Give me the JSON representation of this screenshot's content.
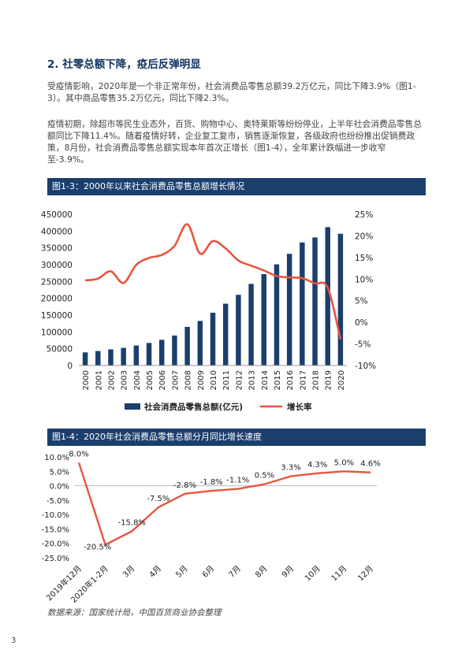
{
  "section_title": "2. 社零总额下降，疫后反弹明显",
  "paragraphs": [
    "受疫情影响，2020年是一个非正常年份，社会消费品零售总额39.2万亿元，同比下降3.9%（图1-3）。其中商品零售35.2万亿元，同比下降2.3%。",
    "疫情初期，除超市等民生业态外，百货、购物中心、奥特莱斯等纷纷停业，上半年社会消费品零售总额同比下降11.4%。随着疫情好转，企业复工复市，销售逐渐恢复，各级政府也纷纷推出促销费政策，8月份，社会消费品零售总额实现本年首次正增长（图1-4），全年累计跌幅进一步收窄至-3.9%。"
  ],
  "figures": [
    {
      "caption": "图1-3：2000年以来社会消费品零售总额增长情况"
    },
    {
      "caption": "图1-4：2020年社会消费品零售总额分月同比增长速度"
    }
  ],
  "chart_data": [
    {
      "type": "bar",
      "categories": [
        "2000",
        "2001",
        "2002",
        "2003",
        "2004",
        "2005",
        "2006",
        "2007",
        "2008",
        "2009",
        "2010",
        "2011",
        "2012",
        "2013",
        "2014",
        "2015",
        "2016",
        "2017",
        "2018",
        "2019",
        "2020"
      ],
      "series": [
        {
          "name": "社会消费品零售总额(亿元)",
          "type": "bar",
          "color": "#1b3f6d",
          "axis": "left",
          "values": [
            39106,
            43055,
            48136,
            52516,
            59501,
            67177,
            76410,
            89210,
            114830,
            132678,
            156998,
            183919,
            210307,
            242843,
            271896,
            300931,
            332316,
            366262,
            380987,
            411649,
            391981
          ]
        },
        {
          "name": "增长率",
          "type": "line",
          "color": "#e8553f",
          "axis": "right",
          "values": [
            9.7,
            10.1,
            11.8,
            9.1,
            13.3,
            14.9,
            15.6,
            17.7,
            22.7,
            15.9,
            18.8,
            17.1,
            14.3,
            13.1,
            12.0,
            10.7,
            10.4,
            10.2,
            9.0,
            8.0,
            -3.9
          ]
        }
      ],
      "y_left_ticks": [
        "450000",
        "400000",
        "350000",
        "300000",
        "250000",
        "200000",
        "150000",
        "100000",
        "50000",
        "0"
      ],
      "y_right_ticks": [
        "25%",
        "20%",
        "15%",
        "10%",
        "5%",
        "0%",
        "-5%",
        "-10%"
      ],
      "ylim_left": [
        0,
        450000
      ],
      "ylim_right": [
        -10,
        25
      ],
      "legend_position": "bottom"
    },
    {
      "type": "line",
      "categories": [
        "2019年12月",
        "2020年1-2月",
        "3月",
        "4月",
        "5月",
        "6月",
        "7月",
        "8月",
        "9月",
        "10月",
        "11月",
        "12月"
      ],
      "series": [
        {
          "name": "",
          "color": "#e8553f",
          "values": [
            8.0,
            -20.5,
            -15.8,
            -7.5,
            -2.8,
            -1.8,
            -1.1,
            0.5,
            3.3,
            4.3,
            5.0,
            4.6
          ],
          "labels": [
            "8.0%",
            "-20.5%",
            "-15.8%",
            "-7.5%",
            "-2.8%",
            "-1.8%",
            "-1.1%",
            "0.5%",
            "3.3%",
            "4.3%",
            "5.0%",
            "4.6%"
          ]
        }
      ],
      "y_ticks": [
        "10.0%",
        "5.0%",
        "0.0%",
        "-5.0%",
        "-10.0%",
        "-15.0%",
        "-20.0%",
        "-25.0%"
      ],
      "ylim": [
        -25,
        10
      ]
    }
  ],
  "source": "数据来源：国家统计局，中国百货商业协会整理",
  "page_number": "3"
}
